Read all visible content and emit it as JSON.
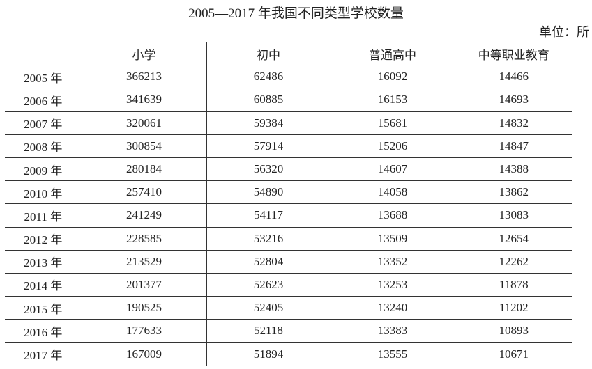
{
  "chart_data": {
    "type": "table",
    "title": "2005—2017 年我国不同类型学校数量",
    "unit": "单位：所",
    "columns": [
      "",
      "小学",
      "初中",
      "普通高中",
      "中等职业教育"
    ],
    "rows": [
      [
        "2005 年",
        366213,
        62486,
        16092,
        14466
      ],
      [
        "2006 年",
        341639,
        60885,
        16153,
        14693
      ],
      [
        "2007 年",
        320061,
        59384,
        15681,
        14832
      ],
      [
        "2008 年",
        300854,
        57914,
        15206,
        14847
      ],
      [
        "2009 年",
        280184,
        56320,
        14607,
        14388
      ],
      [
        "2010 年",
        257410,
        54890,
        14058,
        13862
      ],
      [
        "2011 年",
        241249,
        54117,
        13688,
        13083
      ],
      [
        "2012 年",
        228585,
        53216,
        13509,
        12654
      ],
      [
        "2013 年",
        213529,
        52804,
        13352,
        12262
      ],
      [
        "2014 年",
        201377,
        52623,
        13253,
        11878
      ],
      [
        "2015 年",
        190525,
        52405,
        13240,
        11202
      ],
      [
        "2016 年",
        177633,
        52118,
        13383,
        10893
      ],
      [
        "2017 年",
        167009,
        51894,
        13555,
        10671
      ]
    ]
  }
}
